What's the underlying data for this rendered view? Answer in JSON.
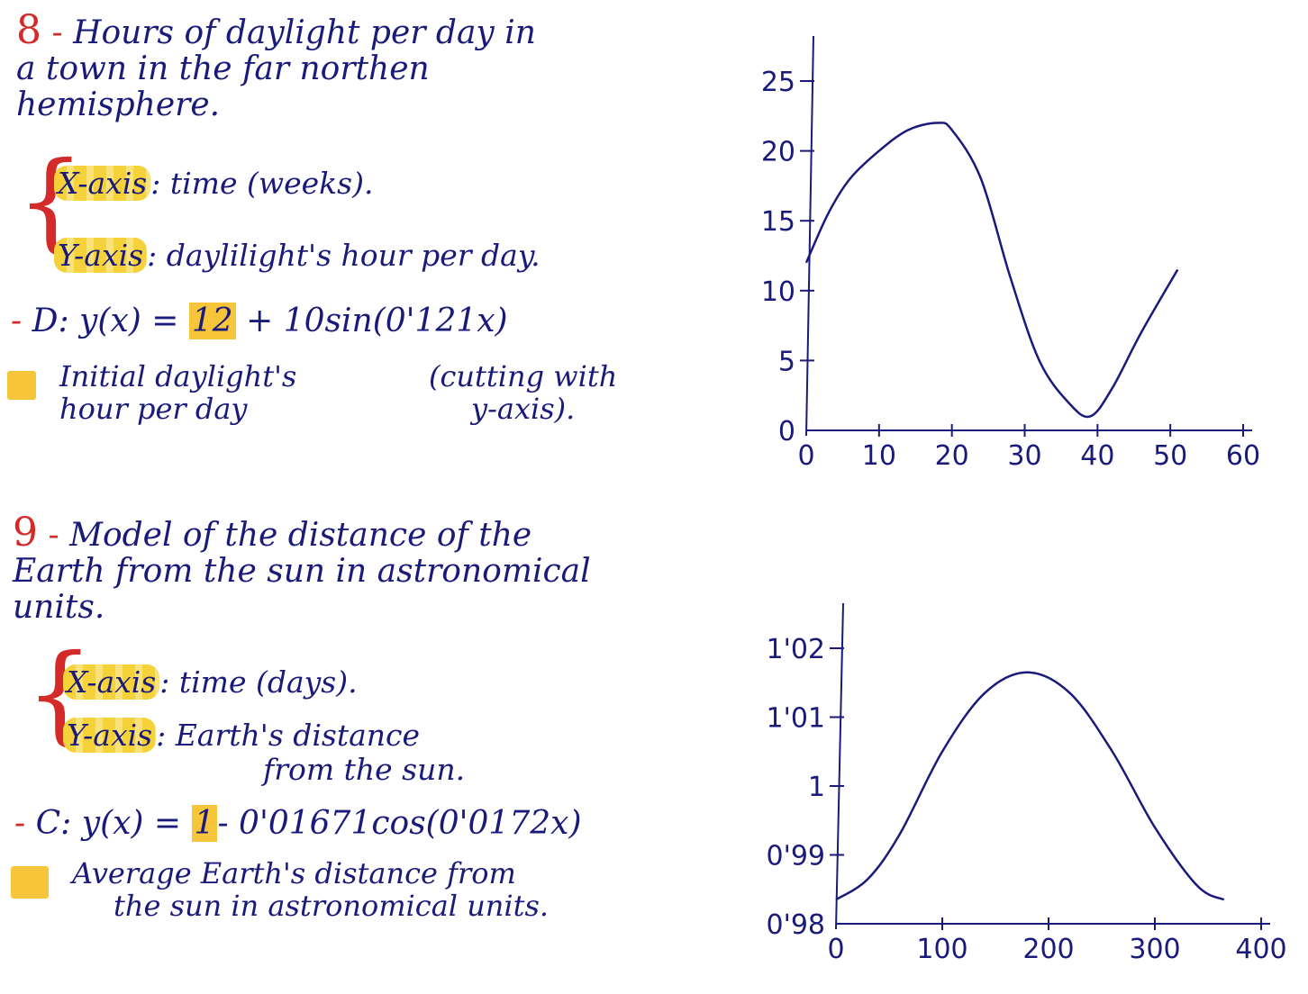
{
  "section8": {
    "number": "8",
    "dash": "-",
    "title_lines": [
      "Hours of daylight per day in",
      "a town in the far northen",
      "hemisphere."
    ],
    "x_axis_label": "X-axis",
    "x_axis_desc": ": time (weeks).",
    "y_axis_label": "Y-axis",
    "y_axis_desc": ": daylilight's hour per day.",
    "formula_dash": "-",
    "formula_prefix": "D: y(x) = ",
    "formula_box": "12",
    "formula_rest": " + 10sin(0'121x)",
    "note_lines": [
      "Initial daylight's",
      "hour per day"
    ],
    "note_aside": [
      "(cutting with",
      "y-axis)."
    ]
  },
  "section9": {
    "number": "9",
    "dash": "-",
    "title_lines": [
      "Model of the distance of the",
      "Earth from the sun in astronomical",
      "units."
    ],
    "x_axis_label": "X-axis",
    "x_axis_desc": ": time (days).",
    "y_axis_label": "Y-axis",
    "y_axis_desc": ": Earth's distance",
    "y_axis_desc2": "from the sun.",
    "formula_dash": "-",
    "formula_prefix": "C: y(x) = ",
    "formula_box": "1",
    "formula_rest": "- 0'01671cos(0'0172x)",
    "note_lines": [
      "Average Earth's distance from",
      "the sun in astronomical units."
    ]
  },
  "colors": {
    "ink": "#1a1a7a",
    "accent": "#d42a2a",
    "highlight": "#f6c53a"
  },
  "chart_data": [
    {
      "type": "line",
      "title": "",
      "xlabel": "",
      "ylabel": "",
      "xlim": [
        0,
        60
      ],
      "ylim": [
        0,
        25
      ],
      "xticks": [
        "0",
        "10",
        "20",
        "30",
        "40",
        "50",
        "60"
      ],
      "yticks": [
        "0",
        "5",
        "10",
        "15",
        "20",
        "25"
      ],
      "series": [
        {
          "x": [
            0,
            3,
            6,
            10,
            14,
            18,
            20,
            24,
            28,
            32,
            36,
            39,
            42,
            46,
            51
          ],
          "y": [
            12,
            15.5,
            18,
            20,
            21.5,
            22,
            21.5,
            18,
            11,
            5,
            2,
            1,
            3,
            7,
            11.5
          ]
        }
      ],
      "grid": false
    },
    {
      "type": "line",
      "title": "",
      "xlabel": "",
      "ylabel": "",
      "xlim": [
        0,
        400
      ],
      "ylim": [
        0.98,
        1.02
      ],
      "xticks": [
        "0",
        "100",
        "200",
        "300",
        "400"
      ],
      "yticks": [
        "0'98",
        "0'99",
        "1",
        "1'01",
        "1'02"
      ],
      "series": [
        {
          "x": [
            0,
            30,
            60,
            100,
            140,
            180,
            220,
            260,
            300,
            340,
            365
          ],
          "y": [
            0.9835,
            0.9865,
            0.993,
            1.005,
            1.0135,
            1.0165,
            1.0135,
            1.005,
            0.994,
            0.9855,
            0.9835
          ]
        }
      ],
      "grid": false
    }
  ]
}
